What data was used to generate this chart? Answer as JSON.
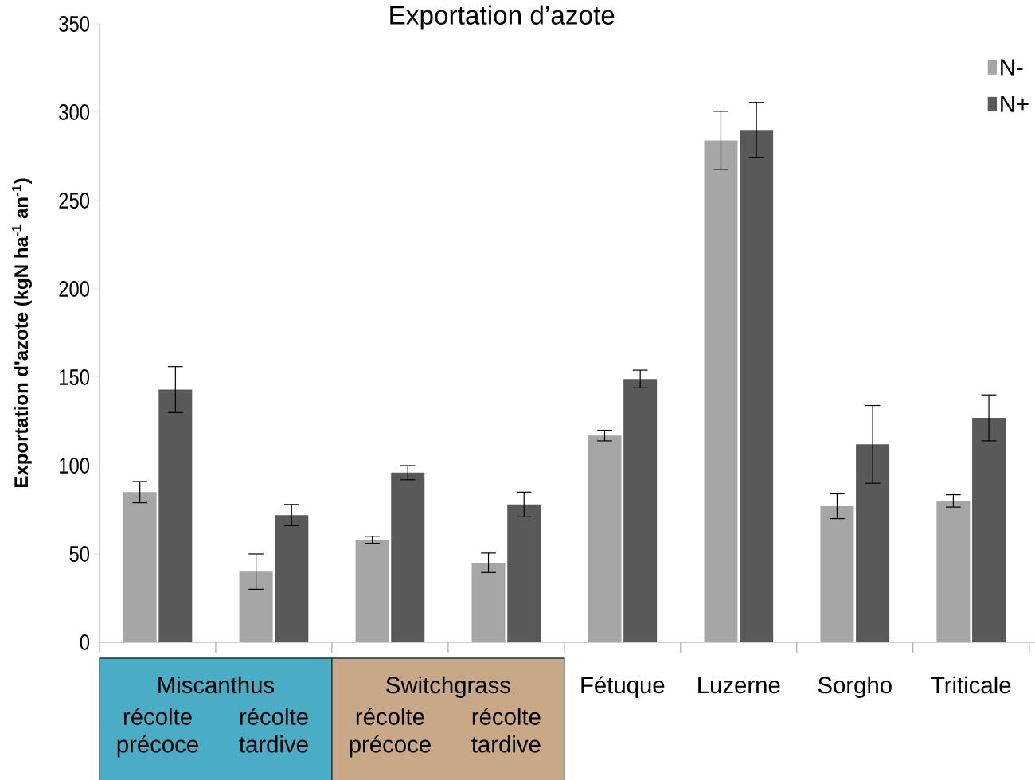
{
  "chart_data": {
    "type": "bar",
    "title": "Exportation d’azote",
    "ylabel": "Exportation d'azote (kgN ha$^{-1}$ an$^{-1}$)",
    "categories": [
      "récolte précoce",
      "récolte tardive",
      "récolte précoce",
      "récolte tardive",
      "Fétuque",
      "Luzerne",
      "Sorgho",
      "Triticale"
    ],
    "series": [
      {
        "name": "N-",
        "color": "#a6a6a6",
        "values": [
          85,
          40,
          58,
          45,
          117,
          284,
          77,
          80
        ],
        "errors": [
          6,
          10,
          2,
          5.5,
          3,
          16.5,
          7,
          3.5
        ]
      },
      {
        "name": "N+",
        "color": "#595959",
        "values": [
          143,
          72,
          96,
          78,
          149,
          290,
          112,
          127
        ],
        "errors": [
          13,
          6,
          4,
          7,
          5,
          15.5,
          22,
          13
        ]
      }
    ],
    "annotations": [
      "Miscanthus",
      "Switchgrass"
    ],
    "ylim": [
      0,
      350
    ],
    "yticks": [
      0,
      50,
      100,
      150,
      200,
      250,
      300,
      350
    ],
    "legend": "top right",
    "grid": false
  }
}
